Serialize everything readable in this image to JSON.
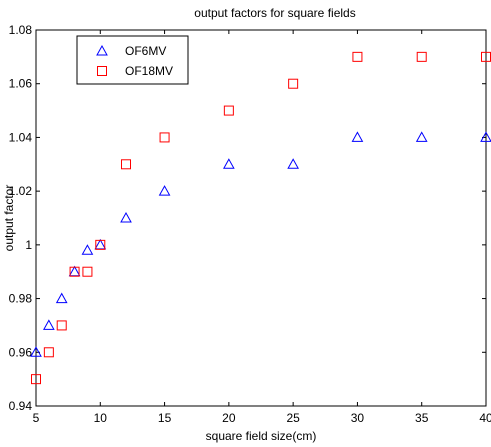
{
  "chart_data": {
    "type": "scatter",
    "title": "output factors for square fields",
    "xlabel": "square field size(cm)",
    "ylabel": "output factor",
    "xlim": [
      5,
      40
    ],
    "ylim": [
      0.94,
      1.08
    ],
    "xticks": [
      5,
      10,
      15,
      20,
      25,
      30,
      35,
      40
    ],
    "yticks": [
      0.94,
      0.96,
      0.98,
      1,
      1.02,
      1.04,
      1.06,
      1.08
    ],
    "xtick_labels": [
      "5",
      "10",
      "15",
      "20",
      "25",
      "30",
      "35",
      "40"
    ],
    "ytick_labels": [
      "0.94",
      "0.96",
      "0.98",
      "1",
      "1.02",
      "1.04",
      "1.06",
      "1.08"
    ],
    "grid": false,
    "legend_position": "top-left",
    "series": [
      {
        "name": "OF6MV",
        "marker": "triangle",
        "color": "#0000ff",
        "x": [
          5,
          6,
          7,
          8,
          9,
          10,
          12,
          15,
          20,
          25,
          30,
          35,
          40
        ],
        "y": [
          0.96,
          0.97,
          0.98,
          0.99,
          0.998,
          1.0,
          1.01,
          1.02,
          1.03,
          1.03,
          1.04,
          1.04,
          1.04
        ]
      },
      {
        "name": "OF18MV",
        "marker": "square",
        "color": "#ff0000",
        "x": [
          5,
          6,
          7,
          8,
          9,
          10,
          12,
          15,
          20,
          25,
          30,
          35,
          40
        ],
        "y": [
          0.95,
          0.96,
          0.97,
          0.99,
          0.99,
          1.0,
          1.03,
          1.04,
          1.05,
          1.06,
          1.07,
          1.07,
          1.07
        ]
      }
    ]
  }
}
